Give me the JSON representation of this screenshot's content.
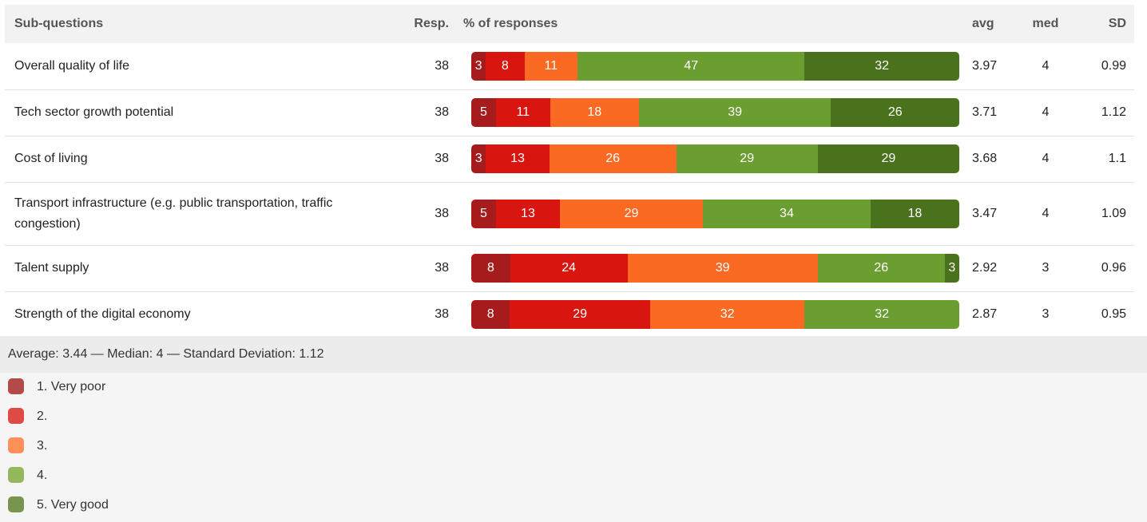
{
  "headers": {
    "subq": "Sub-questions",
    "resp": "Resp.",
    "pct": "% of responses",
    "avg": "avg",
    "med": "med",
    "sd": "SD"
  },
  "colors": [
    "#a61c1c",
    "#d9150f",
    "#fb6a23",
    "#6a9e30",
    "#4a721d"
  ],
  "legend_swatch_colors": [
    "#b24a4a",
    "#e04a44",
    "#fd8f5b",
    "#94b95d",
    "#789550"
  ],
  "rows": [
    {
      "question": "Overall quality of life",
      "resp": "38",
      "segments": [
        "3",
        "8",
        "11",
        "47",
        "32"
      ],
      "avg": "3.97",
      "med": "4",
      "sd": "0.99"
    },
    {
      "question": "Tech sector growth potential",
      "resp": "38",
      "segments": [
        "5",
        "11",
        "18",
        "39",
        "26"
      ],
      "avg": "3.71",
      "med": "4",
      "sd": "1.12"
    },
    {
      "question": "Cost of living",
      "resp": "38",
      "segments": [
        "3",
        "13",
        "26",
        "29",
        "29"
      ],
      "avg": "3.68",
      "med": "4",
      "sd": "1.1"
    },
    {
      "question": "Transport infrastructure (e.g. public transportation, traffic congestion)",
      "resp": "38",
      "segments": [
        "5",
        "13",
        "29",
        "34",
        "18"
      ],
      "avg": "3.47",
      "med": "4",
      "sd": "1.09"
    },
    {
      "question": "Talent supply",
      "resp": "38",
      "segments": [
        "8",
        "24",
        "39",
        "26",
        "3"
      ],
      "avg": "2.92",
      "med": "3",
      "sd": "0.96"
    },
    {
      "question": "Strength of the digital economy",
      "resp": "38",
      "segments": [
        "8",
        "29",
        "32",
        "32",
        ""
      ],
      "avg": "2.87",
      "med": "3",
      "sd": "0.95"
    }
  ],
  "summary": "Average: 3.44 — Median: 4 — Standard Deviation: 1.12",
  "legend": [
    "1. Very poor",
    "2.",
    "3.",
    "4.",
    "5. Very good"
  ],
  "chart_data": {
    "type": "bar",
    "stacked": true,
    "categories": [
      "Overall quality of life",
      "Tech sector growth potential",
      "Cost of living",
      "Transport infrastructure (e.g. public transportation, traffic congestion)",
      "Talent supply",
      "Strength of the digital economy"
    ],
    "series": [
      {
        "name": "1. Very poor",
        "values": [
          3,
          5,
          3,
          5,
          8,
          8
        ]
      },
      {
        "name": "2.",
        "values": [
          8,
          11,
          13,
          13,
          24,
          29
        ]
      },
      {
        "name": "3.",
        "values": [
          11,
          18,
          26,
          29,
          39,
          32
        ]
      },
      {
        "name": "4.",
        "values": [
          47,
          39,
          29,
          34,
          26,
          32
        ]
      },
      {
        "name": "5. Very good",
        "values": [
          32,
          26,
          29,
          18,
          3,
          0
        ]
      }
    ],
    "xlabel": "% of responses",
    "ylim": [
      0,
      100
    ]
  }
}
